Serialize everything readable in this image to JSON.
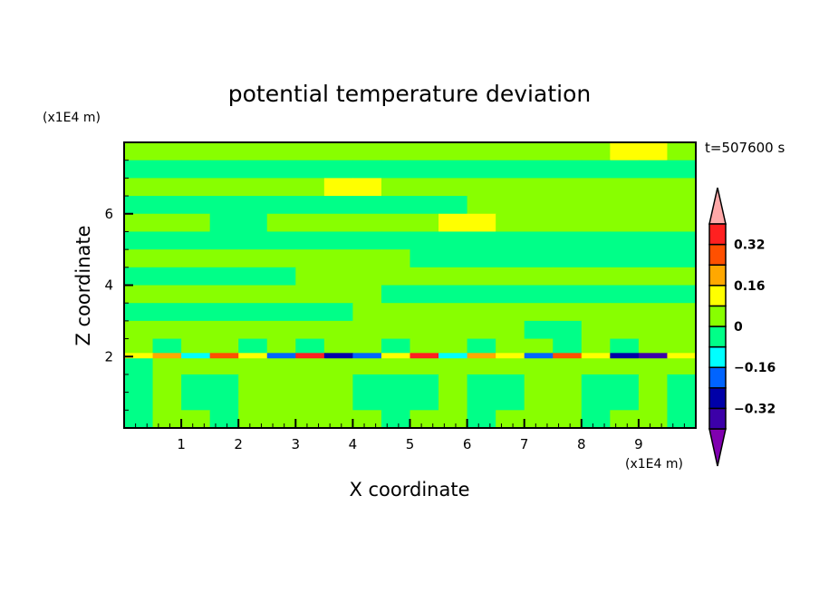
{
  "chart_data": {
    "type": "heatmap",
    "title": "potential temperature deviation",
    "xlabel": "X coordinate",
    "ylabel": "Z coordinate",
    "x_unit": "(x1E4 m)",
    "y_unit": "(x1E4 m)",
    "annotation": "t=507600 s",
    "xlim": [
      0,
      10
    ],
    "ylim": [
      0,
      8
    ],
    "x_ticks": [
      1,
      2,
      3,
      4,
      5,
      6,
      7,
      8,
      9
    ],
    "y_ticks": [
      2,
      4,
      6
    ],
    "grid": false,
    "colorbar": {
      "placement": "right",
      "levels": [
        -0.4,
        -0.32,
        -0.24,
        -0.16,
        -0.08,
        0,
        0.08,
        0.16,
        0.24,
        0.32,
        0.4
      ],
      "tick_labels": [
        {
          "value": 0.32,
          "label": "0.32"
        },
        {
          "value": 0.16,
          "label": "0.16"
        },
        {
          "value": 0,
          "label": "0"
        },
        {
          "value": -0.16,
          "label": "−0.16"
        },
        {
          "value": -0.32,
          "label": "−0.32"
        }
      ],
      "colors": [
        "#3c00a8",
        "#0000a8",
        "#0064ff",
        "#00ffff",
        "#00ff88",
        "#88ff00",
        "#ffff00",
        "#ffa800",
        "#ff5000",
        "#ff2020"
      ],
      "under_color": "#8000b0",
      "over_color": "#ffa8a8",
      "extend": "both"
    },
    "x_centers": [
      0.25,
      0.75,
      1.25,
      1.75,
      2.25,
      2.75,
      3.25,
      3.75,
      4.25,
      4.75,
      5.25,
      5.75,
      6.25,
      6.75,
      7.25,
      7.75,
      8.25,
      8.75,
      9.25,
      9.75
    ],
    "rows": [
      {
        "z": [
          7.5,
          8.0
        ],
        "values": [
          0.04,
          0.04,
          0.04,
          0.04,
          0.04,
          0.04,
          0.04,
          0.04,
          0.04,
          0.04,
          0.04,
          0.04,
          0.04,
          0.04,
          0.04,
          0.04,
          0.04,
          0.12,
          0.12,
          0.04
        ]
      },
      {
        "z": [
          7.0,
          7.5
        ],
        "values": [
          -0.04,
          -0.04,
          -0.04,
          -0.04,
          -0.04,
          -0.04,
          -0.04,
          -0.04,
          -0.04,
          -0.04,
          -0.04,
          -0.04,
          -0.04,
          -0.04,
          -0.04,
          -0.04,
          -0.04,
          -0.04,
          -0.04,
          -0.04
        ]
      },
      {
        "z": [
          6.5,
          7.0
        ],
        "values": [
          0.04,
          0.04,
          0.04,
          0.04,
          0.04,
          0.04,
          0.04,
          0.12,
          0.12,
          0.04,
          0.04,
          0.04,
          0.04,
          0.04,
          0.04,
          0.04,
          0.04,
          0.04,
          0.04,
          0.04
        ]
      },
      {
        "z": [
          6.0,
          6.5
        ],
        "values": [
          -0.04,
          -0.04,
          -0.04,
          -0.04,
          -0.04,
          -0.04,
          -0.04,
          -0.04,
          -0.04,
          -0.04,
          -0.04,
          -0.04,
          0.04,
          0.04,
          0.04,
          0.04,
          0.04,
          0.04,
          0.04,
          0.04
        ]
      },
      {
        "z": [
          5.5,
          6.0
        ],
        "values": [
          0.04,
          0.04,
          0.04,
          -0.04,
          -0.04,
          0.04,
          0.04,
          0.04,
          0.04,
          0.04,
          0.04,
          0.12,
          0.12,
          0.04,
          0.04,
          0.04,
          0.04,
          0.04,
          0.04,
          0.04
        ]
      },
      {
        "z": [
          5.0,
          5.5
        ],
        "values": [
          -0.04,
          -0.04,
          -0.04,
          -0.04,
          -0.04,
          -0.04,
          -0.04,
          -0.04,
          -0.04,
          -0.04,
          -0.04,
          -0.04,
          -0.04,
          -0.04,
          -0.04,
          -0.04,
          -0.04,
          -0.04,
          -0.04,
          -0.04
        ]
      },
      {
        "z": [
          4.5,
          5.0
        ],
        "values": [
          0.04,
          0.04,
          0.04,
          0.04,
          0.04,
          0.04,
          0.04,
          0.04,
          0.04,
          0.04,
          -0.04,
          -0.04,
          -0.04,
          -0.04,
          -0.04,
          -0.04,
          -0.04,
          -0.04,
          -0.04,
          -0.04
        ]
      },
      {
        "z": [
          4.0,
          4.5
        ],
        "values": [
          -0.04,
          -0.04,
          -0.04,
          -0.04,
          -0.04,
          -0.04,
          0.04,
          0.04,
          0.04,
          0.04,
          0.04,
          0.04,
          0.04,
          0.04,
          0.04,
          0.04,
          0.04,
          0.04,
          0.04,
          0.04
        ]
      },
      {
        "z": [
          3.5,
          4.0
        ],
        "values": [
          0.04,
          0.04,
          0.04,
          0.04,
          0.04,
          0.04,
          0.04,
          0.04,
          0.04,
          -0.04,
          -0.04,
          -0.04,
          -0.04,
          -0.04,
          -0.04,
          -0.04,
          -0.04,
          -0.04,
          -0.04,
          -0.04
        ]
      },
      {
        "z": [
          3.0,
          3.5
        ],
        "values": [
          -0.04,
          -0.04,
          -0.04,
          -0.04,
          -0.04,
          -0.04,
          -0.04,
          -0.04,
          0.04,
          0.04,
          0.04,
          0.04,
          0.04,
          0.04,
          0.04,
          0.04,
          0.04,
          0.04,
          0.04,
          0.04
        ]
      },
      {
        "z": [
          2.5,
          3.0
        ],
        "values": [
          0.04,
          0.04,
          0.04,
          0.04,
          0.04,
          0.04,
          0.04,
          0.04,
          0.04,
          0.04,
          0.04,
          0.04,
          0.04,
          0.04,
          -0.04,
          -0.04,
          0.04,
          0.04,
          0.04,
          0.04
        ]
      },
      {
        "z": [
          2.1,
          2.5
        ],
        "values": [
          0.04,
          -0.04,
          0.04,
          0.04,
          -0.04,
          0.04,
          -0.04,
          0.04,
          0.04,
          -0.04,
          0.04,
          0.04,
          -0.04,
          0.04,
          0.04,
          -0.04,
          0.04,
          -0.04,
          0.04,
          0.04
        ]
      },
      {
        "z": [
          1.95,
          2.1
        ],
        "values": [
          0.12,
          0.2,
          -0.12,
          0.28,
          0.12,
          -0.2,
          0.36,
          -0.28,
          -0.2,
          0.12,
          0.36,
          -0.12,
          0.2,
          0.12,
          -0.2,
          0.28,
          0.12,
          -0.28,
          -0.36,
          0.12
        ]
      },
      {
        "z": [
          1.5,
          1.95
        ],
        "values": [
          -0.04,
          0.04,
          0.04,
          0.04,
          0.04,
          0.04,
          0.04,
          0.04,
          0.04,
          0.04,
          0.04,
          0.04,
          0.04,
          0.04,
          0.04,
          0.04,
          0.04,
          0.04,
          0.04,
          0.04
        ]
      },
      {
        "z": [
          1.0,
          1.5
        ],
        "values": [
          -0.04,
          0.04,
          -0.04,
          -0.04,
          0.04,
          0.04,
          0.04,
          0.04,
          -0.04,
          -0.04,
          -0.04,
          0.04,
          -0.04,
          -0.04,
          0.04,
          0.04,
          -0.04,
          -0.04,
          0.04,
          -0.04
        ]
      },
      {
        "z": [
          0.5,
          1.0
        ],
        "values": [
          -0.04,
          0.04,
          -0.04,
          -0.04,
          0.04,
          0.04,
          0.04,
          0.04,
          -0.04,
          -0.04,
          -0.04,
          0.04,
          -0.04,
          -0.04,
          0.04,
          0.04,
          -0.04,
          -0.04,
          0.04,
          -0.04
        ]
      },
      {
        "z": [
          0.0,
          0.5
        ],
        "values": [
          -0.04,
          0.04,
          0.04,
          -0.04,
          0.04,
          0.04,
          0.04,
          0.04,
          0.04,
          -0.04,
          0.04,
          0.04,
          -0.04,
          0.04,
          0.04,
          0.04,
          -0.04,
          0.04,
          0.04,
          -0.04
        ]
      }
    ]
  }
}
